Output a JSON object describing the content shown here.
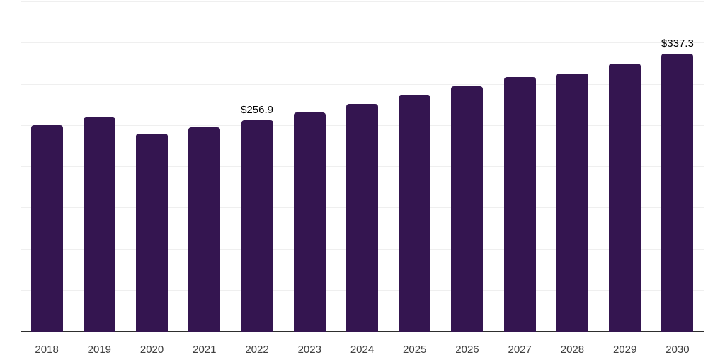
{
  "chart_data": {
    "type": "bar",
    "title": "",
    "xlabel": "",
    "ylabel": "",
    "categories": [
      "2018",
      "2019",
      "2020",
      "2021",
      "2022",
      "2023",
      "2024",
      "2025",
      "2026",
      "2027",
      "2028",
      "2029",
      "2030"
    ],
    "values": [
      250.9,
      260.3,
      240.6,
      248.3,
      256.9,
      266.3,
      276.6,
      286.8,
      297.9,
      309.1,
      313.4,
      325.4,
      337.3
    ],
    "point_labels": [
      "",
      "",
      "",
      "",
      "$256.9",
      "",
      "",
      "",
      "",
      "",
      "",
      "",
      "$337.3"
    ],
    "ylim": [
      0,
      400
    ],
    "grid": true,
    "grid_step": 50,
    "legend": "none",
    "colors": {
      "bar": "#341550",
      "grid": "#efefef",
      "axis": "#2e2e2e",
      "tick_label": "#3f3f3f",
      "value_label": "#000000",
      "background": "#ffffff"
    }
  }
}
